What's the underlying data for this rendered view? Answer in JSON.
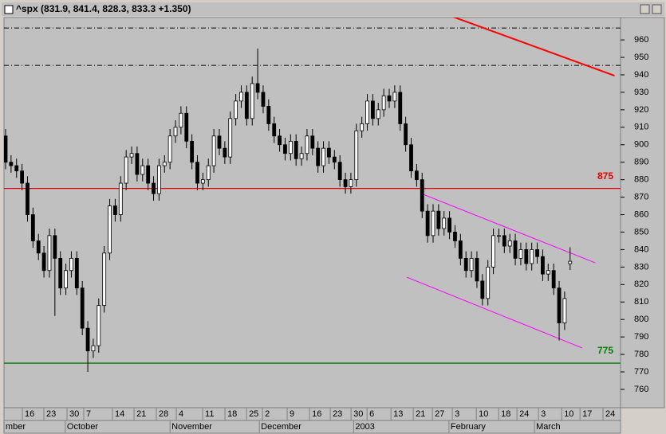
{
  "chart_data": {
    "type": "candlestick",
    "title": "^spx (831.9, 841.4, 828.3, 833.3 +1.350)",
    "x": [
      0,
      1,
      2,
      3,
      4,
      5,
      6,
      7,
      8,
      9,
      10,
      11,
      12,
      13,
      14,
      15,
      16,
      17,
      18,
      19,
      20,
      21,
      22,
      23,
      24,
      25,
      26,
      27,
      28,
      29,
      30,
      31,
      32,
      33,
      34,
      35,
      36,
      37,
      38,
      39,
      40,
      41,
      42,
      43,
      44,
      45,
      46,
      47,
      48,
      49,
      50,
      51,
      52,
      53,
      54,
      55,
      56,
      57,
      58,
      59,
      60,
      61,
      62,
      63,
      64,
      65,
      66,
      67,
      68,
      69,
      70,
      71,
      72,
      73,
      74,
      75,
      76,
      77,
      78,
      79,
      80,
      81,
      82,
      83,
      84,
      85,
      86,
      87,
      88,
      89,
      90,
      91,
      92,
      93,
      94,
      95,
      96,
      97,
      98,
      99,
      100,
      101,
      102,
      103
    ],
    "open": [
      905,
      890,
      888,
      885,
      878,
      860,
      845,
      838,
      828,
      848,
      835,
      818,
      828,
      835,
      818,
      795,
      782,
      785,
      808,
      838,
      865,
      860,
      878,
      893,
      895,
      883,
      888,
      878,
      872,
      888,
      890,
      905,
      910,
      918,
      902,
      890,
      878,
      880,
      888,
      905,
      898,
      893,
      915,
      925,
      930,
      915,
      935,
      930,
      922,
      912,
      905,
      900,
      895,
      902,
      892,
      895,
      905,
      898,
      888,
      898,
      893,
      890,
      880,
      876,
      880,
      908,
      912,
      925,
      915,
      920,
      928,
      925,
      930,
      912,
      900,
      885,
      880,
      862,
      848,
      862,
      852,
      858,
      850,
      845,
      835,
      828,
      835,
      822,
      812,
      830,
      848,
      848,
      842,
      845,
      835,
      840,
      832,
      840,
      836,
      826,
      828,
      818,
      798,
      831.9
    ],
    "high": [
      909,
      894,
      892,
      889,
      882,
      864,
      849,
      842,
      852,
      852,
      839,
      832,
      839,
      839,
      822,
      799,
      789,
      812,
      842,
      869,
      869,
      882,
      897,
      899,
      899,
      892,
      892,
      882,
      892,
      894,
      909,
      914,
      922,
      922,
      906,
      894,
      884,
      892,
      909,
      909,
      902,
      919,
      929,
      934,
      934,
      939,
      955,
      934,
      926,
      916,
      909,
      904,
      906,
      906,
      899,
      909,
      909,
      902,
      902,
      902,
      897,
      894,
      884,
      884,
      912,
      916,
      929,
      929,
      924,
      932,
      932,
      934,
      934,
      916,
      904,
      889,
      884,
      866,
      866,
      866,
      862,
      862,
      854,
      849,
      839,
      839,
      839,
      826,
      834,
      852,
      852,
      852,
      849,
      849,
      844,
      844,
      844,
      844,
      840,
      832,
      832,
      822,
      816,
      841.4
    ],
    "low": [
      886,
      884,
      881,
      874,
      856,
      841,
      834,
      824,
      824,
      802,
      814,
      814,
      824,
      814,
      791,
      770,
      778,
      781,
      804,
      834,
      856,
      856,
      874,
      889,
      879,
      879,
      874,
      868,
      868,
      884,
      886,
      901,
      906,
      898,
      886,
      874,
      874,
      876,
      884,
      894,
      889,
      889,
      911,
      921,
      911,
      911,
      926,
      918,
      908,
      901,
      896,
      891,
      891,
      888,
      888,
      891,
      894,
      884,
      884,
      889,
      886,
      876,
      872,
      872,
      876,
      904,
      908,
      911,
      911,
      916,
      921,
      921,
      908,
      896,
      881,
      876,
      858,
      844,
      844,
      848,
      848,
      846,
      841,
      831,
      824,
      824,
      818,
      808,
      808,
      826,
      844,
      838,
      838,
      831,
      831,
      828,
      828,
      832,
      822,
      822,
      814,
      788,
      794,
      828.3
    ],
    "close": [
      890,
      888,
      885,
      878,
      860,
      845,
      838,
      828,
      848,
      835,
      818,
      828,
      835,
      818,
      795,
      782,
      785,
      808,
      838,
      865,
      860,
      878,
      893,
      895,
      883,
      888,
      878,
      872,
      888,
      890,
      905,
      910,
      918,
      902,
      890,
      878,
      880,
      888,
      905,
      898,
      893,
      915,
      925,
      930,
      915,
      935,
      930,
      922,
      912,
      905,
      900,
      895,
      902,
      892,
      895,
      905,
      898,
      888,
      898,
      893,
      890,
      880,
      876,
      880,
      908,
      912,
      925,
      915,
      920,
      928,
      925,
      930,
      912,
      900,
      885,
      880,
      862,
      848,
      862,
      852,
      858,
      850,
      845,
      835,
      828,
      835,
      822,
      812,
      830,
      848,
      848,
      842,
      845,
      835,
      840,
      832,
      840,
      836,
      826,
      828,
      818,
      798,
      812,
      833.3
    ],
    "xlim": [
      -0.29,
      112.2
    ],
    "ylim": [
      749.5,
      972.8
    ],
    "yticks": [
      760,
      770,
      780,
      790,
      800,
      810,
      820,
      830,
      840,
      850,
      860,
      870,
      880,
      890,
      900,
      910,
      920,
      930,
      940,
      950,
      960
    ],
    "xticks": [
      {
        "value": 3.06,
        "label": "16"
      },
      {
        "value": 6.99,
        "label": "23"
      },
      {
        "value": 11.21,
        "label": "30"
      },
      {
        "value": 14.26,
        "label": "7"
      },
      {
        "value": 19.5,
        "label": "14"
      },
      {
        "value": 23.44,
        "label": "21"
      },
      {
        "value": 27.51,
        "label": "28"
      },
      {
        "value": 31.15,
        "label": "4"
      },
      {
        "value": 35.95,
        "label": "11"
      },
      {
        "value": 40.03,
        "label": "18"
      },
      {
        "value": 43.96,
        "label": "25"
      },
      {
        "value": 46.87,
        "label": "2"
      },
      {
        "value": 51.38,
        "label": "9"
      },
      {
        "value": 55.46,
        "label": "16"
      },
      {
        "value": 59.24,
        "label": "23"
      },
      {
        "value": 63.03,
        "label": "30"
      },
      {
        "value": 65.94,
        "label": "6"
      },
      {
        "value": 70.31,
        "label": "13"
      },
      {
        "value": 74.38,
        "label": "21"
      },
      {
        "value": 77.87,
        "label": "27"
      },
      {
        "value": 81.51,
        "label": "3"
      },
      {
        "value": 85.88,
        "label": "10"
      },
      {
        "value": 89.96,
        "label": "18"
      },
      {
        "value": 93.3,
        "label": "24"
      },
      {
        "value": 97.23,
        "label": "3"
      },
      {
        "value": 101.46,
        "label": "10"
      },
      {
        "value": 104.8,
        "label": "17"
      },
      {
        "value": 109.0,
        "label": "24"
      }
    ],
    "months": [
      {
        "value": -0.3,
        "label": "mber"
      },
      {
        "value": 10.9,
        "label": "October"
      },
      {
        "value": 30.0,
        "label": "November"
      },
      {
        "value": 46.3,
        "label": "December"
      },
      {
        "value": 63.5,
        "label": "2003"
      },
      {
        "value": 80.9,
        "label": "February"
      },
      {
        "value": 96.5,
        "label": "March"
      }
    ],
    "hlines": [
      {
        "value": 875,
        "label": "875",
        "color": "#e00000",
        "style": "solid"
      },
      {
        "value": 775,
        "label": "775",
        "color": "#008000",
        "style": "solid"
      },
      {
        "value": 966.8,
        "color": "#000000",
        "style": "dashdot"
      },
      {
        "value": 945.4,
        "color": "#000000",
        "style": "dashdot"
      }
    ],
    "trendlines": [
      {
        "x": [
          81.2,
          111.1
        ],
        "y": [
          973.7,
          939.5
        ],
        "color": "#ff0000",
        "width": 2
      },
      {
        "x": [
          75.8,
          107.6
        ],
        "y": [
          872.1,
          832.4
        ],
        "color": "#ff00ff",
        "width": 1
      },
      {
        "x": [
          73.2,
          105.2
        ],
        "y": [
          824.2,
          783.7
        ],
        "color": "#ff00ff",
        "width": 1
      }
    ]
  }
}
